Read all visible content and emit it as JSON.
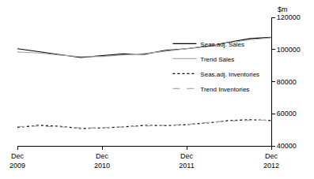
{
  "chart_data": {
    "type": "line",
    "ylabel": "$m",
    "categories": [
      "Dec 2009",
      null,
      null,
      null,
      "Dec 2010",
      null,
      null,
      null,
      "Dec 2011",
      null,
      null,
      null,
      "Dec 2012"
    ],
    "series": [
      {
        "name": "Seas.adj. Sales",
        "color": "#000000",
        "line_style": "solid",
        "values": [
          100500,
          98800,
          96800,
          95000,
          96000,
          97200,
          97000,
          99500,
          100500,
          102000,
          104500,
          106800,
          107500
        ]
      },
      {
        "name": "Trend Sales",
        "color": "#aaaaaa",
        "line_style": "solid",
        "values": [
          98500,
          97800,
          96500,
          95500,
          95600,
          96500,
          97500,
          98800,
          100500,
          102200,
          104300,
          106000,
          107300
        ]
      },
      {
        "name": "Seas.adj. Inventories",
        "color": "#000000",
        "line_style": "dot",
        "values": [
          51500,
          52800,
          52200,
          50800,
          51200,
          51800,
          52800,
          52600,
          53200,
          54300,
          55800,
          56300,
          55800
        ]
      },
      {
        "name": "Trend Inventories",
        "color": "#aaaaaa",
        "line_style": "dash",
        "values": [
          52000,
          52300,
          51800,
          51200,
          51300,
          51900,
          52400,
          52800,
          53400,
          54500,
          55500,
          55900,
          56000
        ]
      }
    ],
    "ylim": [
      40000,
      120000
    ],
    "yticks": [
      40000,
      60000,
      80000,
      100000,
      120000
    ],
    "grid": false,
    "legend": "right"
  }
}
